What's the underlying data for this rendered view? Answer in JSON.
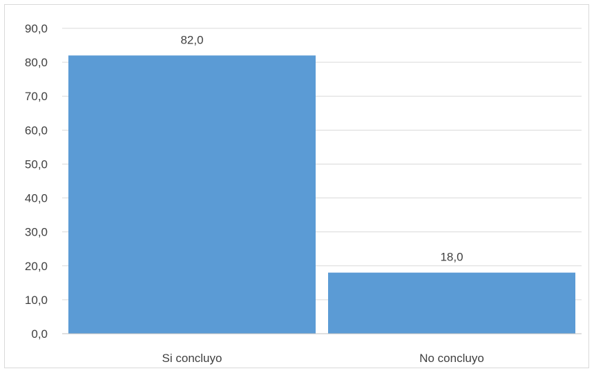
{
  "chart_data": {
    "type": "bar",
    "categories": [
      "Si concluyo",
      "No concluyo"
    ],
    "values": [
      82.0,
      18.0
    ],
    "data_labels": [
      "82,0",
      "18,0"
    ],
    "yticks": [
      "0,0",
      "10,0",
      "20,0",
      "30,0",
      "40,0",
      "50,0",
      "60,0",
      "70,0",
      "80,0",
      "90,0"
    ],
    "ylim": [
      0,
      90
    ],
    "grid": true,
    "legend": "none",
    "title": "",
    "xlabel": "",
    "ylabel": "",
    "colors": {
      "bar": "#5b9bd5",
      "grid": "#d9d9d9",
      "axis": "#bfbfbf",
      "text": "#404040"
    }
  }
}
